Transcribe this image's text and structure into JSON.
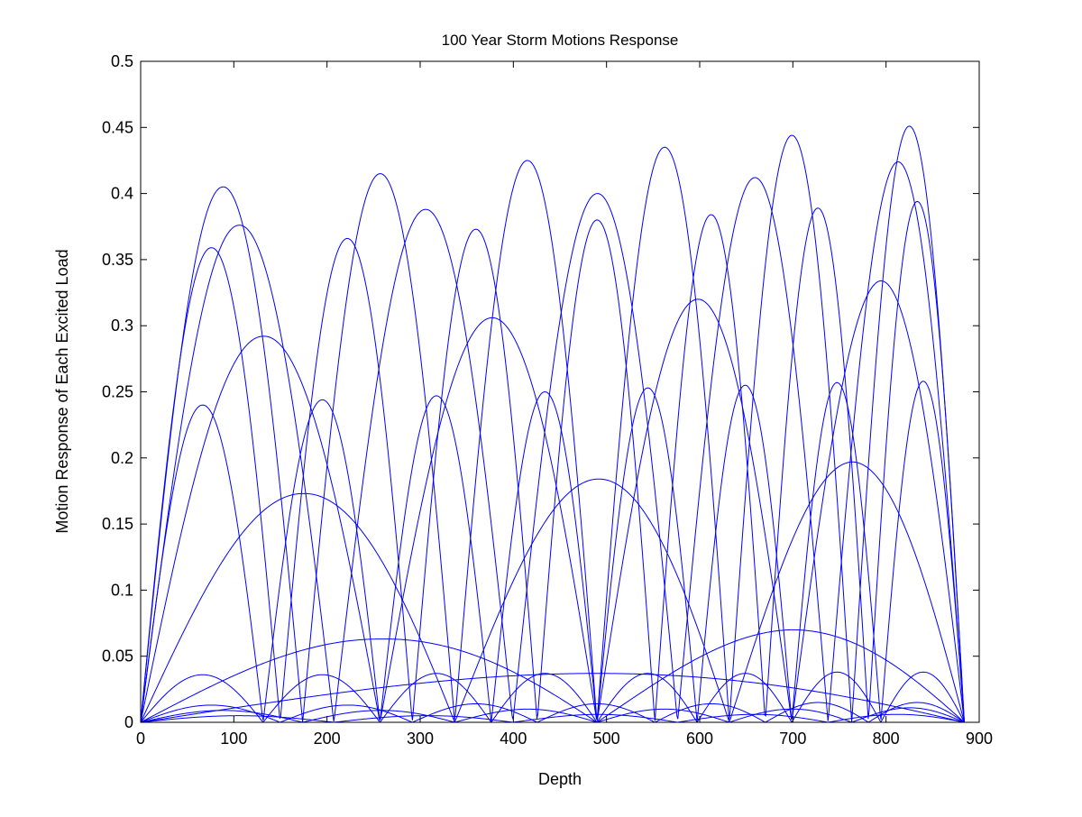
{
  "chart_data": {
    "type": "line",
    "title": "100 Year Storm Motions Response",
    "xlabel": "Depth",
    "ylabel": "Motion Response of Each Excited Load",
    "xlim": [
      0,
      900
    ],
    "ylim": [
      0,
      0.5
    ],
    "depth_max": 884,
    "xticks": [
      "0",
      "100",
      "200",
      "300",
      "400",
      "500",
      "600",
      "700",
      "800",
      "900"
    ],
    "yticks": [
      "0",
      "0.05",
      "0.1",
      "0.15",
      "0.2",
      "0.25",
      "0.3",
      "0.35",
      "0.4",
      "0.45",
      "0.5"
    ],
    "grid": false,
    "line_color": "#0000ff",
    "series": [
      {
        "lobe_peaks": [
          [
            490,
            0.037
          ]
        ]
      },
      {
        "lobe_peaks": [
          [
            265,
            0.063
          ],
          [
            700,
            0.07
          ]
        ]
      },
      {
        "lobe_peaks": [
          [
            175,
            0.173
          ],
          [
            490,
            0.184
          ],
          [
            760,
            0.197
          ]
        ]
      },
      {
        "lobe_peaks": [
          [
            133,
            0.292
          ],
          [
            378,
            0.306
          ],
          [
            597,
            0.32
          ],
          [
            795,
            0.334
          ]
        ]
      },
      {
        "lobe_peaks": [
          [
            105,
            0.376
          ],
          [
            303,
            0.388
          ],
          [
            490,
            0.4
          ],
          [
            657,
            0.412
          ],
          [
            812,
            0.424
          ]
        ]
      },
      {
        "lobe_peaks": [
          [
            85,
            0.405
          ],
          [
            252,
            0.415
          ],
          [
            408,
            0.425
          ],
          [
            557,
            0.435
          ],
          [
            695,
            0.444
          ],
          [
            822,
            0.451
          ]
        ]
      },
      {
        "lobe_peaks": [
          [
            70,
            0.359
          ],
          [
            213,
            0.366
          ],
          [
            350,
            0.373
          ],
          [
            478,
            0.38
          ],
          [
            608,
            0.384
          ],
          [
            720,
            0.389
          ],
          [
            832,
            0.394
          ]
        ]
      },
      {
        "lobe_peaks": [
          [
            62,
            0.24
          ],
          [
            185,
            0.244
          ],
          [
            305,
            0.247
          ],
          [
            425,
            0.25
          ],
          [
            535,
            0.253
          ],
          [
            640,
            0.255
          ],
          [
            740,
            0.257
          ],
          [
            840,
            0.258
          ]
        ]
      },
      {
        "lobe_peaks": [
          [
            55,
            0.036
          ],
          [
            170,
            0.036
          ],
          [
            275,
            0.037
          ],
          [
            380,
            0.037
          ],
          [
            485,
            0.037
          ],
          [
            590,
            0.037
          ],
          [
            760,
            0.038
          ],
          [
            845,
            0.038
          ]
        ]
      },
      {
        "lobe_peaks": [
          [
            70,
            0.013
          ],
          [
            213,
            0.013
          ],
          [
            350,
            0.014
          ],
          [
            478,
            0.014
          ],
          [
            608,
            0.014
          ],
          [
            720,
            0.015
          ],
          [
            832,
            0.015
          ]
        ]
      },
      {
        "lobe_peaks": [
          [
            85,
            0.009
          ],
          [
            252,
            0.009
          ],
          [
            408,
            0.01
          ],
          [
            557,
            0.01
          ],
          [
            695,
            0.01
          ],
          [
            822,
            0.011
          ]
        ]
      },
      {
        "lobe_peaks": [
          [
            105,
            0.005
          ],
          [
            303,
            0.005
          ],
          [
            490,
            0.006
          ],
          [
            657,
            0.006
          ],
          [
            812,
            0.006
          ]
        ]
      }
    ]
  }
}
